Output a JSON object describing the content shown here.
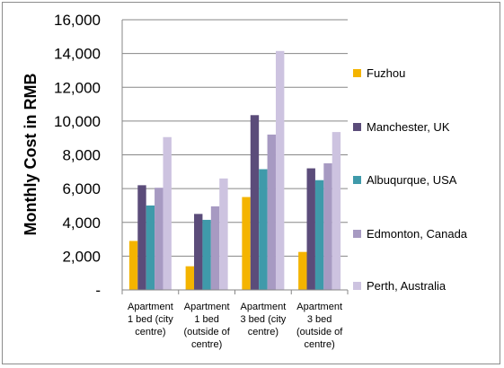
{
  "chart_data": {
    "type": "bar",
    "title": "",
    "xlabel": "",
    "ylabel": "Monthly  Cost in RMB",
    "ylim": [
      0,
      16000
    ],
    "y_ticks": [
      "-",
      "2,000",
      "4,000",
      "6,000",
      "8,000",
      "10,000",
      "12,000",
      "14,000",
      "16,000"
    ],
    "y_tick_values": [
      0,
      2000,
      4000,
      6000,
      8000,
      10000,
      12000,
      14000,
      16000
    ],
    "categories": [
      [
        "Apartment",
        "1 bed (city",
        "centre)"
      ],
      [
        "Apartment",
        "1 bed",
        "(outside of",
        "centre)"
      ],
      [
        "Apartment",
        "3 bed (city",
        "centre)"
      ],
      [
        "Apartment",
        "3 bed",
        "(outside of",
        "centre)"
      ]
    ],
    "grid": true,
    "legend_position": "right",
    "series": [
      {
        "name": "Fuzhou",
        "color": "#f4b400",
        "values": [
          2900,
          1400,
          5500,
          2250
        ]
      },
      {
        "name": "Manchester, UK",
        "color": "#5b4c7a",
        "values": [
          6200,
          4500,
          10350,
          7200
        ]
      },
      {
        "name": "Albuqurque, USA",
        "color": "#3f9aaa",
        "values": [
          5000,
          4150,
          7150,
          6500
        ]
      },
      {
        "name": "Edmonton, Canada",
        "color": "#a79ac2",
        "values": [
          6050,
          4950,
          9200,
          7500
        ]
      },
      {
        "name": "Perth, Australia",
        "color": "#cdc3e0",
        "values": [
          9050,
          6600,
          14150,
          9350
        ]
      }
    ]
  }
}
